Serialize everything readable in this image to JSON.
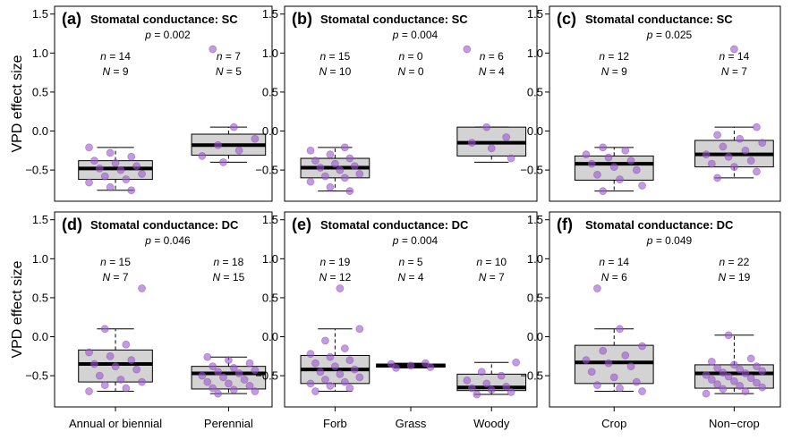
{
  "chart_data": {
    "type": "box",
    "ylabel": "VPD effect size",
    "ylim": [
      -0.9,
      1.6
    ],
    "yticks": [
      -0.5,
      0.0,
      0.5,
      1.0,
      1.5
    ],
    "ytick_labels": [
      "−0.5",
      "0.0",
      "0.5",
      "1.0",
      "1.5"
    ],
    "panels": [
      {
        "letter": "(a)",
        "title": "Stomatal conductance: SC",
        "p_text": "p = 0.002",
        "groups": [
          {
            "category": "Annual or biennial",
            "n_text": "n = 14",
            "N_text": "N = 9",
            "q1": -0.62,
            "median": -0.48,
            "q3": -0.38,
            "whisker_low": -0.76,
            "whisker_high": -0.21,
            "points": [
              -0.21,
              -0.28,
              -0.33,
              -0.38,
              -0.41,
              -0.45,
              -0.48,
              -0.5,
              -0.55,
              -0.58,
              -0.62,
              -0.66,
              -0.72,
              -0.76
            ]
          },
          {
            "category": "Perennial",
            "n_text": "n = 7",
            "N_text": "N = 5",
            "q1": -0.31,
            "median": -0.18,
            "q3": -0.04,
            "whisker_low": -0.4,
            "whisker_high": 0.05,
            "points": [
              1.05,
              0.05,
              -0.1,
              -0.18,
              -0.25,
              -0.32,
              -0.4
            ]
          }
        ]
      },
      {
        "letter": "(b)",
        "title": "Stomatal conductance: SC",
        "p_text": "p = 0.004",
        "groups": [
          {
            "category": "Forb",
            "n_text": "n = 15",
            "N_text": "N = 10",
            "q1": -0.6,
            "median": -0.47,
            "q3": -0.35,
            "whisker_low": -0.77,
            "whisker_high": -0.21,
            "points": [
              -0.21,
              -0.25,
              -0.3,
              -0.35,
              -0.38,
              -0.42,
              -0.45,
              -0.47,
              -0.5,
              -0.55,
              -0.58,
              -0.6,
              -0.65,
              -0.72,
              -0.77
            ]
          },
          {
            "category": "Grass",
            "n_text": "n = 0",
            "N_text": "N = 0",
            "q1": null,
            "median": null,
            "q3": null,
            "whisker_low": null,
            "whisker_high": null,
            "points": []
          },
          {
            "category": "Woody",
            "n_text": "n = 6",
            "N_text": "N = 4",
            "q1": -0.32,
            "median": -0.15,
            "q3": 0.05,
            "whisker_low": -0.4,
            "whisker_high": 0.05,
            "points": [
              1.05,
              0.05,
              -0.08,
              -0.15,
              -0.22,
              -0.35
            ]
          }
        ]
      },
      {
        "letter": "(c)",
        "title": "Stomatal conductance: SC",
        "p_text": "p = 0.025",
        "groups": [
          {
            "category": "Crop",
            "n_text": "n = 12",
            "N_text": "N = 9",
            "q1": -0.63,
            "median": -0.42,
            "q3": -0.32,
            "whisker_low": -0.77,
            "whisker_high": -0.21,
            "points": [
              -0.21,
              -0.25,
              -0.3,
              -0.34,
              -0.38,
              -0.42,
              -0.46,
              -0.5,
              -0.56,
              -0.62,
              -0.7,
              -0.77
            ]
          },
          {
            "category": "Non−crop",
            "n_text": "n = 14",
            "N_text": "N = 7",
            "q1": -0.46,
            "median": -0.3,
            "q3": -0.12,
            "whisker_low": -0.6,
            "whisker_high": 0.05,
            "points": [
              1.05,
              0.05,
              -0.05,
              -0.1,
              -0.15,
              -0.2,
              -0.25,
              -0.3,
              -0.33,
              -0.38,
              -0.42,
              -0.46,
              -0.52,
              -0.6
            ]
          }
        ]
      },
      {
        "letter": "(d)",
        "title": "Stomatal conductance: DC",
        "p_text": "p = 0.046",
        "groups": [
          {
            "category": "Annual or biennial",
            "n_text": "n = 15",
            "N_text": "N = 7",
            "q1": -0.58,
            "median": -0.35,
            "q3": -0.17,
            "whisker_low": -0.7,
            "whisker_high": 0.1,
            "points": [
              0.62,
              0.1,
              -0.1,
              -0.2,
              -0.25,
              -0.3,
              -0.35,
              -0.38,
              -0.42,
              -0.5,
              -0.55,
              -0.58,
              -0.62,
              -0.66,
              -0.7
            ]
          },
          {
            "category": "Perennial",
            "n_text": "n = 18",
            "N_text": "N = 15",
            "q1": -0.67,
            "median": -0.47,
            "q3": -0.38,
            "whisker_low": -0.73,
            "whisker_high": -0.26,
            "points": [
              -0.26,
              -0.3,
              -0.34,
              -0.38,
              -0.4,
              -0.43,
              -0.45,
              -0.47,
              -0.5,
              -0.52,
              -0.55,
              -0.58,
              -0.6,
              -0.63,
              -0.66,
              -0.68,
              -0.7,
              -0.73
            ]
          }
        ]
      },
      {
        "letter": "(e)",
        "title": "Stomatal conductance: DC",
        "p_text": "p = 0.004",
        "groups": [
          {
            "category": "Forb",
            "n_text": "n = 19",
            "N_text": "N = 12",
            "q1": -0.6,
            "median": -0.42,
            "q3": -0.24,
            "whisker_low": -0.7,
            "whisker_high": 0.1,
            "points": [
              0.62,
              0.1,
              -0.05,
              -0.15,
              -0.22,
              -0.26,
              -0.3,
              -0.34,
              -0.38,
              -0.42,
              -0.45,
              -0.48,
              -0.52,
              -0.55,
              -0.58,
              -0.6,
              -0.63,
              -0.66,
              -0.7
            ]
          },
          {
            "category": "Grass",
            "n_text": "n = 5",
            "N_text": "N = 4",
            "q1": -0.39,
            "median": -0.37,
            "q3": -0.35,
            "whisker_low": -0.4,
            "whisker_high": -0.34,
            "points": [
              -0.34,
              -0.35,
              -0.37,
              -0.39,
              -0.4
            ]
          },
          {
            "category": "Woody",
            "n_text": "n = 10",
            "N_text": "N = 7",
            "q1": -0.69,
            "median": -0.65,
            "q3": -0.48,
            "whisker_low": -0.74,
            "whisker_high": -0.33,
            "points": [
              -0.33,
              -0.45,
              -0.5,
              -0.56,
              -0.6,
              -0.64,
              -0.66,
              -0.68,
              -0.71,
              -0.74
            ]
          }
        ]
      },
      {
        "letter": "(f)",
        "title": "Stomatal conductance: DC",
        "p_text": "p = 0.049",
        "groups": [
          {
            "category": "Crop",
            "n_text": "n = 14",
            "N_text": "N = 6",
            "q1": -0.6,
            "median": -0.33,
            "q3": -0.11,
            "whisker_low": -0.7,
            "whisker_high": 0.1,
            "points": [
              0.62,
              0.1,
              -0.12,
              -0.18,
              -0.24,
              -0.3,
              -0.34,
              -0.38,
              -0.45,
              -0.52,
              -0.58,
              -0.62,
              -0.66,
              -0.7
            ]
          },
          {
            "category": "Non−crop",
            "n_text": "n = 22",
            "N_text": "N = 19",
            "q1": -0.66,
            "median": -0.47,
            "q3": -0.36,
            "whisker_low": -0.73,
            "whisker_high": 0.02,
            "points": [
              0.02,
              -0.28,
              -0.32,
              -0.36,
              -0.38,
              -0.4,
              -0.42,
              -0.44,
              -0.46,
              -0.47,
              -0.49,
              -0.51,
              -0.53,
              -0.55,
              -0.57,
              -0.59,
              -0.61,
              -0.63,
              -0.65,
              -0.67,
              -0.7,
              -0.73
            ]
          }
        ]
      }
    ]
  }
}
